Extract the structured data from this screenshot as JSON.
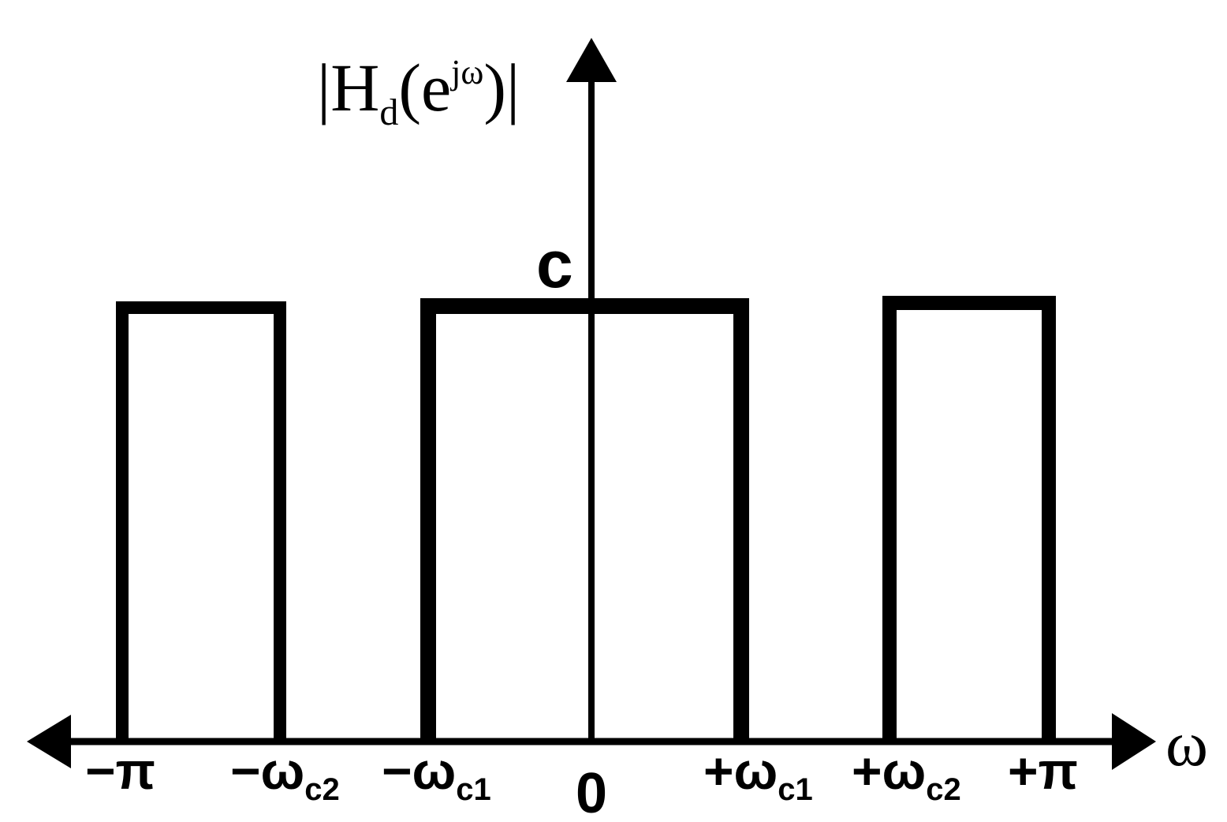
{
  "y_axis_label": {
    "pre": "|H",
    "sub": "d",
    "mid": "(e",
    "sup": "jω",
    "post": ")|"
  },
  "x_axis_label": "ω",
  "level_label": "c",
  "ticks": [
    {
      "main": "−π",
      "sub": ""
    },
    {
      "main": "−ω",
      "sub": "c2"
    },
    {
      "main": "−ω",
      "sub": "c1"
    },
    {
      "main": "0",
      "sub": ""
    },
    {
      "main": "+ω",
      "sub": "c1"
    },
    {
      "main": "+ω",
      "sub": "c2"
    },
    {
      "main": "+π",
      "sub": ""
    }
  ],
  "colors": {
    "ink": "#000000",
    "background": "#ffffff"
  }
}
